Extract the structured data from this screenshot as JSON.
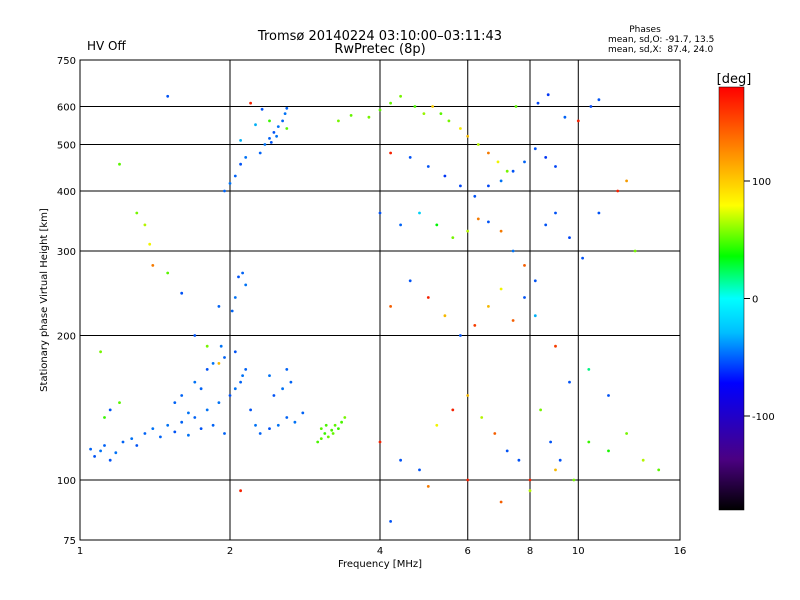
{
  "header": {
    "status": "HV Off",
    "status_color": "#cc0000",
    "title_line1": "Tromsø 20140224 03:10:00–03:11:43",
    "title_line2": "RwPretec (8p)",
    "stats_title": "Phases",
    "stats_line1": "mean, sd,O: -91.7, 13.5",
    "stats_line2": "mean, sd,X:  87.4, 24.0"
  },
  "chart_data": {
    "type": "scatter",
    "xscale": "log",
    "yscale": "log",
    "xlabel": "Frequency [MHz]",
    "ylabel": "Stationary phase Virtual Height [km]",
    "xlim": [
      1,
      16
    ],
    "ylim": [
      75,
      750
    ],
    "xticks": [
      1,
      2,
      4,
      6,
      8,
      10,
      16
    ],
    "yticks": [
      75,
      100,
      200,
      300,
      400,
      500,
      600,
      750
    ],
    "grid": true,
    "colorbar": {
      "label": "[deg]",
      "range": [
        -180,
        180
      ],
      "ticks": [
        100,
        0,
        -100
      ]
    },
    "points": [
      [
        1.05,
        116,
        -105
      ],
      [
        1.07,
        112,
        -110
      ],
      [
        1.1,
        115,
        -100
      ],
      [
        1.12,
        118,
        -105
      ],
      [
        1.15,
        110,
        -110
      ],
      [
        1.18,
        114,
        -100
      ],
      [
        1.22,
        120,
        -105
      ],
      [
        1.27,
        122,
        -100
      ],
      [
        1.3,
        118,
        -110
      ],
      [
        1.35,
        125,
        -105
      ],
      [
        1.4,
        128,
        -100
      ],
      [
        1.45,
        123,
        -105
      ],
      [
        1.5,
        130,
        -100
      ],
      [
        1.55,
        126,
        -110
      ],
      [
        1.6,
        132,
        -105
      ],
      [
        1.65,
        124,
        -100
      ],
      [
        1.7,
        135,
        -105
      ],
      [
        1.75,
        128,
        -110
      ],
      [
        1.8,
        140,
        -100
      ],
      [
        1.85,
        130,
        -105
      ],
      [
        1.9,
        145,
        -100
      ],
      [
        1.95,
        125,
        -105
      ],
      [
        2.0,
        150,
        -110
      ],
      [
        2.05,
        155,
        -100
      ],
      [
        2.1,
        160,
        -105
      ],
      [
        2.12,
        165,
        -100
      ],
      [
        2.15,
        170,
        -105
      ],
      [
        2.2,
        140,
        -110
      ],
      [
        2.25,
        130,
        -100
      ],
      [
        1.6,
        150,
        -105
      ],
      [
        1.7,
        160,
        -100
      ],
      [
        1.8,
        170,
        -110
      ],
      [
        1.75,
        155,
        -105
      ],
      [
        1.85,
        175,
        -100
      ],
      [
        1.95,
        180,
        -105
      ],
      [
        2.05,
        185,
        -110
      ],
      [
        1.92,
        190,
        -100
      ],
      [
        1.55,
        145,
        -105
      ],
      [
        1.65,
        138,
        -100
      ],
      [
        2.3,
        125,
        -105
      ],
      [
        2.4,
        128,
        -110
      ],
      [
        2.5,
        130,
        -100
      ],
      [
        2.6,
        135,
        -105
      ],
      [
        2.7,
        132,
        -100
      ],
      [
        2.8,
        138,
        -105
      ],
      [
        2.45,
        150,
        -110
      ],
      [
        2.55,
        155,
        -100
      ],
      [
        2.65,
        160,
        -105
      ],
      [
        2.4,
        165,
        -100
      ],
      [
        2.6,
        170,
        -105
      ],
      [
        2.02,
        225,
        -105
      ],
      [
        2.05,
        240,
        -100
      ],
      [
        2.08,
        265,
        -110
      ],
      [
        2.12,
        270,
        -105
      ],
      [
        2.15,
        255,
        -100
      ],
      [
        1.9,
        230,
        -105
      ],
      [
        2.0,
        415,
        -100
      ],
      [
        2.05,
        430,
        -105
      ],
      [
        2.1,
        455,
        -110
      ],
      [
        2.15,
        470,
        -100
      ],
      [
        2.3,
        480,
        -105
      ],
      [
        2.35,
        500,
        -100
      ],
      [
        2.4,
        515,
        -105
      ],
      [
        2.45,
        530,
        -110
      ],
      [
        2.5,
        545,
        -100
      ],
      [
        2.55,
        560,
        -105
      ],
      [
        2.58,
        580,
        -100
      ],
      [
        2.6,
        595,
        -105
      ],
      [
        2.42,
        505,
        -110
      ],
      [
        2.48,
        520,
        -100
      ],
      [
        1.95,
        400,
        -105
      ],
      [
        2.32,
        592,
        -110
      ],
      [
        2.1,
        510,
        -80
      ],
      [
        2.25,
        550,
        -80
      ],
      [
        3.0,
        120,
        45
      ],
      [
        3.05,
        122,
        50
      ],
      [
        3.1,
        125,
        40
      ],
      [
        3.15,
        123,
        55
      ],
      [
        3.2,
        127,
        45
      ],
      [
        3.25,
        130,
        50
      ],
      [
        3.3,
        128,
        40
      ],
      [
        3.35,
        132,
        45
      ],
      [
        3.4,
        135,
        60
      ],
      [
        3.05,
        128,
        50
      ],
      [
        3.12,
        130,
        45
      ],
      [
        3.22,
        125,
        55
      ],
      [
        3.3,
        560,
        60
      ],
      [
        3.5,
        575,
        55
      ],
      [
        3.8,
        570,
        60
      ],
      [
        4.0,
        590,
        50
      ],
      [
        4.2,
        610,
        55
      ],
      [
        4.4,
        630,
        60
      ],
      [
        4.7,
        600,
        45
      ],
      [
        4.9,
        580,
        70
      ],
      [
        5.1,
        600,
        115
      ],
      [
        5.3,
        580,
        50
      ],
      [
        5.5,
        560,
        60
      ],
      [
        5.8,
        540,
        105
      ],
      [
        6.0,
        520,
        120
      ],
      [
        6.3,
        500,
        80
      ],
      [
        6.6,
        480,
        140
      ],
      [
        6.9,
        460,
        100
      ],
      [
        7.2,
        440,
        60
      ],
      [
        7.5,
        600,
        50
      ],
      [
        4.2,
        480,
        170
      ],
      [
        4.6,
        470,
        -110
      ],
      [
        5.0,
        450,
        -110
      ],
      [
        5.4,
        430,
        -120
      ],
      [
        5.8,
        410,
        -115
      ],
      [
        6.2,
        390,
        -110
      ],
      [
        6.6,
        410,
        -115
      ],
      [
        7.0,
        420,
        -100
      ],
      [
        7.4,
        440,
        -110
      ],
      [
        7.8,
        460,
        -105
      ],
      [
        8.2,
        490,
        -110
      ],
      [
        8.6,
        470,
        -120
      ],
      [
        9.0,
        450,
        -115
      ],
      [
        9.4,
        570,
        -105
      ],
      [
        10.0,
        560,
        170
      ],
      [
        10.6,
        600,
        -115
      ],
      [
        11.0,
        620,
        -110
      ],
      [
        8.3,
        610,
        -115
      ],
      [
        8.7,
        635,
        -120
      ],
      [
        4.0,
        360,
        -110
      ],
      [
        4.4,
        340,
        -105
      ],
      [
        4.8,
        360,
        -70
      ],
      [
        5.2,
        340,
        20
      ],
      [
        5.6,
        320,
        60
      ],
      [
        6.0,
        330,
        80
      ],
      [
        6.3,
        350,
        140
      ],
      [
        6.6,
        345,
        -110
      ],
      [
        7.0,
        330,
        140
      ],
      [
        7.4,
        300,
        -100
      ],
      [
        7.8,
        280,
        150
      ],
      [
        8.2,
        260,
        -110
      ],
      [
        8.6,
        340,
        -110
      ],
      [
        9.0,
        360,
        -110
      ],
      [
        9.6,
        320,
        -115
      ],
      [
        10.2,
        290,
        -110
      ],
      [
        11.0,
        360,
        -110
      ],
      [
        12.0,
        400,
        170
      ],
      [
        13.0,
        300,
        60
      ],
      [
        12.5,
        420,
        130
      ],
      [
        4.2,
        230,
        150
      ],
      [
        4.6,
        260,
        -110
      ],
      [
        5.0,
        240,
        170
      ],
      [
        5.4,
        220,
        120
      ],
      [
        5.8,
        200,
        -110
      ],
      [
        6.2,
        210,
        160
      ],
      [
        6.6,
        230,
        120
      ],
      [
        7.0,
        250,
        100
      ],
      [
        7.4,
        215,
        150
      ],
      [
        7.8,
        240,
        -110
      ],
      [
        8.2,
        220,
        -80
      ],
      [
        9.0,
        190,
        160
      ],
      [
        9.6,
        160,
        -110
      ],
      [
        10.5,
        170,
        -20
      ],
      [
        11.5,
        150,
        -110
      ],
      [
        4.0,
        120,
        170
      ],
      [
        4.4,
        110,
        -110
      ],
      [
        4.8,
        105,
        -110
      ],
      [
        5.2,
        130,
        100
      ],
      [
        5.6,
        140,
        170
      ],
      [
        6.0,
        150,
        120
      ],
      [
        6.4,
        135,
        80
      ],
      [
        6.8,
        125,
        150
      ],
      [
        7.2,
        115,
        -110
      ],
      [
        7.6,
        110,
        -110
      ],
      [
        8.0,
        100,
        170
      ],
      [
        8.4,
        140,
        60
      ],
      [
        8.8,
        120,
        -110
      ],
      [
        9.2,
        110,
        -110
      ],
      [
        9.8,
        100,
        60
      ],
      [
        10.5,
        120,
        40
      ],
      [
        11.5,
        115,
        30
      ],
      [
        12.5,
        125,
        60
      ],
      [
        13.5,
        110,
        80
      ],
      [
        14.5,
        105,
        50
      ],
      [
        5.0,
        97,
        140
      ],
      [
        6.0,
        100,
        170
      ],
      [
        7.0,
        90,
        150
      ],
      [
        8.0,
        95,
        80
      ],
      [
        9.0,
        105,
        120
      ],
      [
        4.2,
        82,
        -110
      ],
      [
        2.1,
        95,
        170
      ],
      [
        1.5,
        630,
        -110
      ],
      [
        1.2,
        455,
        50
      ],
      [
        1.3,
        360,
        60
      ],
      [
        1.35,
        340,
        80
      ],
      [
        1.38,
        310,
        100
      ],
      [
        1.4,
        280,
        140
      ],
      [
        1.5,
        270,
        50
      ],
      [
        1.6,
        245,
        -110
      ],
      [
        1.7,
        200,
        -110
      ],
      [
        1.8,
        190,
        60
      ],
      [
        1.9,
        175,
        120
      ],
      [
        1.1,
        185,
        60
      ],
      [
        1.12,
        135,
        40
      ],
      [
        1.15,
        140,
        -110
      ],
      [
        1.2,
        145,
        50
      ],
      [
        2.2,
        610,
        170
      ],
      [
        2.4,
        560,
        40
      ],
      [
        2.6,
        540,
        50
      ]
    ]
  }
}
